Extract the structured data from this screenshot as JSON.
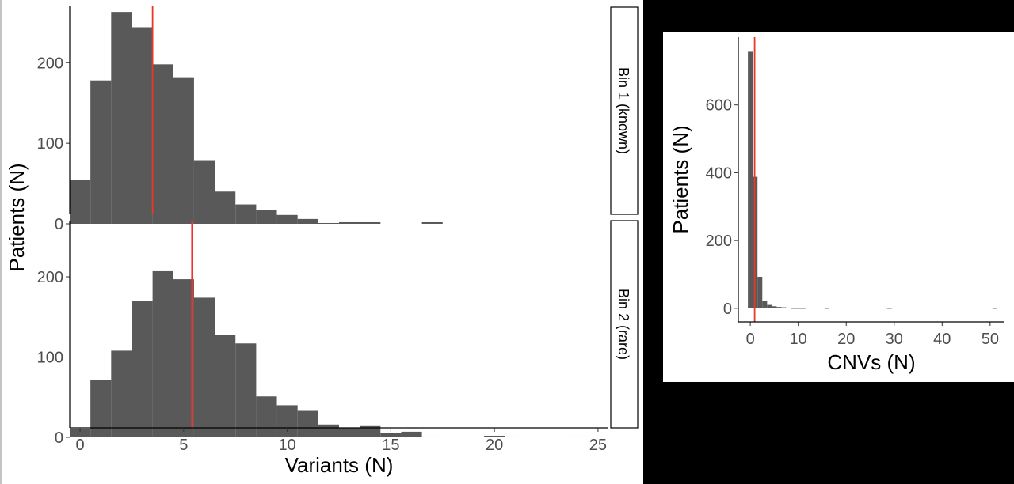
{
  "chart_data": [
    {
      "type": "bar",
      "facet_label": "Bin 1 (known)",
      "ylabel": "Patients (N)",
      "xlabel": "Variants (N)",
      "x": [
        0,
        1,
        2,
        3,
        4,
        5,
        6,
        7,
        8,
        9,
        10,
        11,
        12,
        13,
        14,
        15,
        16,
        17
      ],
      "values": [
        54,
        178,
        263,
        244,
        198,
        182,
        79,
        40,
        24,
        17,
        11,
        6,
        1,
        2,
        2,
        0,
        0,
        2
      ],
      "xlim": [
        -0.5,
        25.5
      ],
      "ylim": [
        0,
        270
      ],
      "xticks": [
        "0",
        "5",
        "10",
        "15",
        "20",
        "25"
      ],
      "yticks": [
        "0",
        "100",
        "200"
      ],
      "mean_line": 3.5,
      "mean_line_color": "#e8372b",
      "bar_color": "#595959",
      "grid": false
    },
    {
      "type": "bar",
      "facet_label": "Bin 2 (rare)",
      "ylabel": "Patients (N)",
      "xlabel": "Variants (N)",
      "x": [
        0,
        1,
        2,
        3,
        4,
        5,
        6,
        7,
        8,
        9,
        10,
        11,
        12,
        13,
        14,
        15,
        16,
        17,
        18,
        19,
        20,
        21,
        22,
        23,
        24
      ],
      "values": [
        10,
        71,
        108,
        170,
        207,
        197,
        174,
        128,
        117,
        51,
        40,
        33,
        16,
        12,
        14,
        5,
        7,
        1,
        0,
        0,
        2,
        1,
        0,
        0,
        1
      ],
      "xlim": [
        -0.5,
        25.5
      ],
      "ylim": [
        0,
        270
      ],
      "xticks": [
        "0",
        "5",
        "10",
        "15",
        "20",
        "25"
      ],
      "yticks": [
        "0",
        "100",
        "200"
      ],
      "mean_line": 5.4,
      "mean_line_color": "#e8372b",
      "bar_color": "#595959",
      "grid": false
    },
    {
      "type": "bar",
      "ylabel": "Patients (N)",
      "xlabel": "CNVs (N)",
      "x": [
        0,
        1,
        2,
        3,
        4,
        5,
        6,
        7,
        8,
        9,
        10,
        11,
        12,
        13,
        14,
        15,
        16,
        17,
        18,
        19,
        20,
        21,
        22,
        23,
        24,
        25,
        26,
        27,
        28,
        29,
        30,
        31,
        32,
        33,
        34,
        35,
        36,
        37,
        38,
        39,
        40,
        41,
        42,
        43,
        44,
        45,
        46,
        47,
        48,
        49,
        50,
        51
      ],
      "values": [
        757,
        388,
        93,
        22,
        10,
        6,
        4,
        3,
        2,
        1,
        1,
        1,
        0,
        0,
        0,
        0,
        1,
        0,
        0,
        0,
        0,
        0,
        0,
        0,
        0,
        0,
        0,
        0,
        0,
        1,
        0,
        0,
        0,
        0,
        0,
        0,
        0,
        0,
        0,
        0,
        0,
        0,
        0,
        0,
        0,
        0,
        0,
        0,
        0,
        0,
        0,
        1
      ],
      "xlim": [
        -2.5,
        53
      ],
      "ylim": [
        -40,
        800
      ],
      "xticks": [
        "0",
        "10",
        "20",
        "30",
        "40",
        "50"
      ],
      "yticks": [
        "0",
        "200",
        "400",
        "600"
      ],
      "mean_line": 0.9,
      "mean_line_color": "#e8372b",
      "bar_color": "#595959",
      "grid": false
    }
  ]
}
